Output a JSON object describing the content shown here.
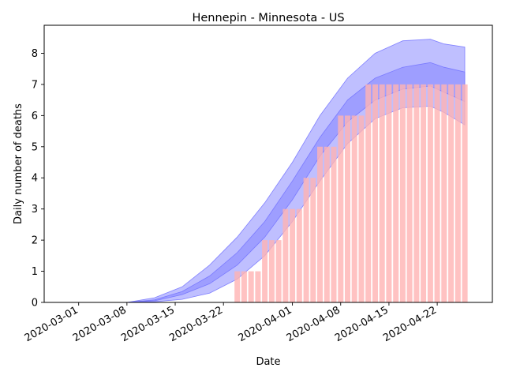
{
  "chart_data": {
    "type": "bar",
    "title": "Hennepin - Minnesota - US",
    "xlabel": "Date",
    "ylabel": "Daily number of deaths",
    "ylim": [
      0,
      8.9
    ],
    "grid": false,
    "x_tick_labels": [
      "2020-03-01",
      "2020-03-08",
      "2020-03-15",
      "2020-03-22",
      "2020-04-01",
      "2020-04-08",
      "2020-04-15",
      "2020-04-22"
    ],
    "y_tick_labels": [
      "0",
      "1",
      "2",
      "3",
      "4",
      "5",
      "6",
      "7",
      "8"
    ],
    "colors": {
      "bars": "#ffb3b3",
      "band_outer": "#b8b8ff",
      "band_inner": "#9a9aff",
      "frame": "#000000"
    },
    "bars": {
      "dates": [
        "2020-03-24",
        "2020-03-25",
        "2020-03-26",
        "2020-03-27",
        "2020-03-28",
        "2020-03-29",
        "2020-03-30",
        "2020-03-31",
        "2020-04-01",
        "2020-04-02",
        "2020-04-03",
        "2020-04-04",
        "2020-04-05",
        "2020-04-06",
        "2020-04-07",
        "2020-04-08",
        "2020-04-09",
        "2020-04-10",
        "2020-04-11",
        "2020-04-12",
        "2020-04-13",
        "2020-04-14",
        "2020-04-15",
        "2020-04-16",
        "2020-04-17",
        "2020-04-18",
        "2020-04-19",
        "2020-04-20",
        "2020-04-21",
        "2020-04-22",
        "2020-04-23",
        "2020-04-24",
        "2020-04-25",
        "2020-04-26"
      ],
      "values": [
        1,
        1,
        1,
        1,
        2,
        2,
        2,
        3,
        3,
        3,
        4,
        4,
        5,
        5,
        5,
        6,
        6,
        6,
        6,
        7,
        7,
        7,
        7,
        7,
        7,
        7,
        7,
        7,
        7,
        7,
        7,
        7,
        7,
        7
      ]
    },
    "bands": {
      "dates": [
        "2020-03-08",
        "2020-03-12",
        "2020-03-16",
        "2020-03-20",
        "2020-03-24",
        "2020-03-28",
        "2020-04-01",
        "2020-04-05",
        "2020-04-09",
        "2020-04-13",
        "2020-04-17",
        "2020-04-21",
        "2020-04-23",
        "2020-04-26"
      ],
      "outer_low": [
        0,
        0.02,
        0.1,
        0.3,
        0.75,
        1.5,
        2.6,
        3.9,
        5.1,
        5.9,
        6.25,
        6.3,
        6.1,
        5.7
      ],
      "outer_high": [
        0,
        0.15,
        0.5,
        1.2,
        2.1,
        3.2,
        4.5,
        6.0,
        7.2,
        8.0,
        8.4,
        8.45,
        8.3,
        8.2
      ],
      "inner_low": [
        0,
        0.05,
        0.25,
        0.6,
        1.2,
        2.1,
        3.3,
        4.7,
        5.8,
        6.5,
        6.85,
        6.95,
        6.75,
        6.45
      ],
      "inner_high": [
        0,
        0.08,
        0.35,
        0.85,
        1.6,
        2.6,
        3.9,
        5.3,
        6.5,
        7.2,
        7.55,
        7.7,
        7.55,
        7.4
      ]
    }
  }
}
